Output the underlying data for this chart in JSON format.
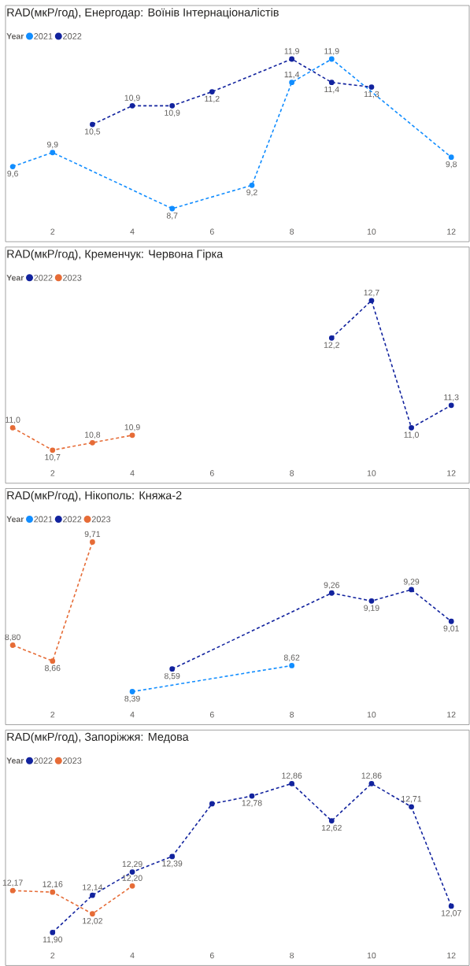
{
  "chart_data": [
    {
      "type": "line",
      "title": "RAD(мкР/год), Енергодар: Воїнів Інтернаціоналістів",
      "legend_title": "Year",
      "legend": "top left",
      "marker": "circle",
      "line_style": "dashed",
      "tick_labels": "x",
      "xlim": [
        0.82,
        12.45
      ],
      "xticks": [
        2,
        4,
        6,
        8,
        10,
        12
      ],
      "series": [
        {
          "name": "2021",
          "color": "#118dff",
          "x": [
            1,
            2,
            5,
            7,
            8,
            9,
            12
          ],
          "values": [
            9.6,
            9.9,
            8.7,
            9.2,
            11.4,
            11.9,
            9.8
          ],
          "value_labels": [
            "9,6",
            "9,9",
            "8,7",
            "9,2",
            "11,4",
            "11,9",
            "9,8"
          ]
        },
        {
          "name": "2022",
          "color": "#12239e",
          "x": [
            3,
            4,
            5,
            6,
            8,
            9,
            10
          ],
          "values": [
            10.5,
            10.9,
            10.9,
            11.2,
            11.9,
            11.4,
            11.3
          ],
          "value_labels": [
            "10,5",
            "10,9",
            "10,9",
            "11,2",
            "11,9",
            "11,4",
            "11,3"
          ]
        }
      ]
    },
    {
      "type": "line",
      "title": "RAD(мкР/год), Кременчук: Червона Гірка",
      "legend_title": "Year",
      "legend": "top left",
      "marker": "circle",
      "line_style": "dashed",
      "tick_labels": "x",
      "xlim": [
        0.82,
        12.45
      ],
      "xticks": [
        2,
        4,
        6,
        8,
        10,
        12
      ],
      "series": [
        {
          "name": "2022",
          "color": "#12239e",
          "x": [
            9,
            10,
            11,
            12
          ],
          "values": [
            12.2,
            12.7,
            11.0,
            11.3
          ],
          "value_labels": [
            "12,2",
            "12,7",
            "11,0",
            "11,3"
          ]
        },
        {
          "name": "2023",
          "color": "#e66c37",
          "x": [
            1,
            2,
            3,
            4
          ],
          "values": [
            11.0,
            10.7,
            10.8,
            10.9
          ],
          "value_labels": [
            "11,0",
            "10,7",
            "10,8",
            "10,9"
          ]
        }
      ]
    },
    {
      "type": "line",
      "title": "RAD(мкР/год), Нікополь: Княжа-2",
      "legend_title": "Year",
      "legend": "top left",
      "marker": "circle",
      "line_style": "dashed",
      "tick_labels": "x",
      "xlim": [
        0.82,
        12.45
      ],
      "xticks": [
        2,
        4,
        6,
        8,
        10,
        12
      ],
      "series": [
        {
          "name": "2021",
          "color": "#118dff",
          "x": [
            4,
            8
          ],
          "values": [
            8.39,
            8.62
          ],
          "value_labels": [
            "8,39",
            "8,62"
          ]
        },
        {
          "name": "2022",
          "color": "#12239e",
          "x": [
            5,
            9,
            10,
            11,
            12
          ],
          "values": [
            8.59,
            9.26,
            9.19,
            9.29,
            9.01
          ],
          "value_labels": [
            "8,59",
            "9,26",
            "9,19",
            "9,29",
            "9,01"
          ]
        },
        {
          "name": "2023",
          "color": "#e66c37",
          "x": [
            1,
            2,
            3
          ],
          "values": [
            8.8,
            8.66,
            9.71
          ],
          "value_labels": [
            "8,80",
            "8,66",
            "9,71"
          ]
        }
      ]
    },
    {
      "type": "line",
      "title": "RAD(мкР/год), Запоріжжя: Медова",
      "legend_title": "Year",
      "legend": "top left",
      "marker": "circle",
      "line_style": "dashed",
      "tick_labels": "x",
      "xlim": [
        0.82,
        12.45
      ],
      "xticks": [
        2,
        4,
        6,
        8,
        10,
        12
      ],
      "series": [
        {
          "name": "2022",
          "color": "#12239e",
          "x": [
            2,
            3,
            4,
            5,
            6,
            7,
            8,
            9,
            10,
            11,
            12
          ],
          "values": [
            11.9,
            12.14,
            12.29,
            12.39,
            12.73,
            12.78,
            12.86,
            12.62,
            12.86,
            12.71,
            12.07
          ],
          "value_labels": [
            "11,90",
            "12,14",
            "12,29",
            "12,39",
            null,
            "12,78",
            "12,86",
            "12,62",
            "12,86",
            "12,71",
            "12,07"
          ]
        },
        {
          "name": "2023",
          "color": "#e66c37",
          "x": [
            1,
            2,
            3,
            4
          ],
          "values": [
            12.17,
            12.16,
            12.02,
            12.2
          ],
          "value_labels": [
            "12,17",
            "12,16",
            "12,02",
            "12,20"
          ]
        }
      ]
    }
  ]
}
